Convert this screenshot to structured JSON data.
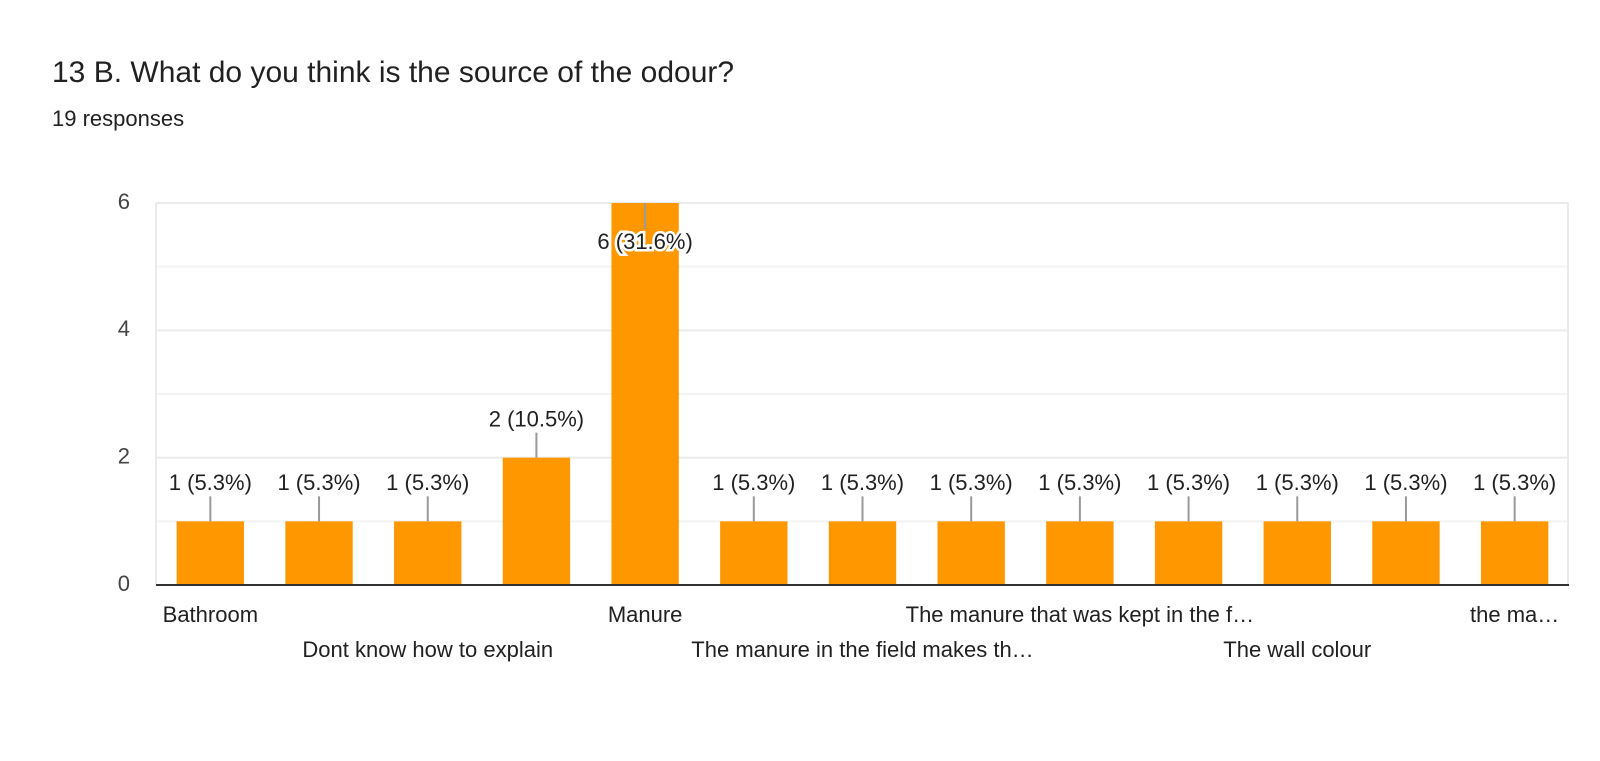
{
  "chart_data": {
    "type": "bar",
    "title": "13 B. What do you think is the source of the odour?",
    "subtitle": "19 responses",
    "categories": [
      "Bathroom",
      null,
      "Dont know how to explain",
      null,
      "Manure",
      null,
      "The manure in the field makes th…",
      null,
      "The manure that was kept in the f…",
      null,
      "The wall colour",
      null,
      "the ma…"
    ],
    "values": [
      1,
      1,
      1,
      2,
      6,
      1,
      1,
      1,
      1,
      1,
      1,
      1,
      1
    ],
    "value_labels": [
      "1 (5.3%)",
      "1 (5.3%)",
      "1 (5.3%)",
      "2 (10.5%)",
      "6 (31.6%)",
      "1 (5.3%)",
      "1 (5.3%)",
      "1 (5.3%)",
      "1 (5.3%)",
      "1 (5.3%)",
      "1 (5.3%)",
      "1 (5.3%)",
      "1 (5.3%)"
    ],
    "color": "#ff9800",
    "ylim": [
      0,
      6
    ],
    "yticks": [
      0,
      2,
      4,
      6
    ],
    "grid": true
  }
}
